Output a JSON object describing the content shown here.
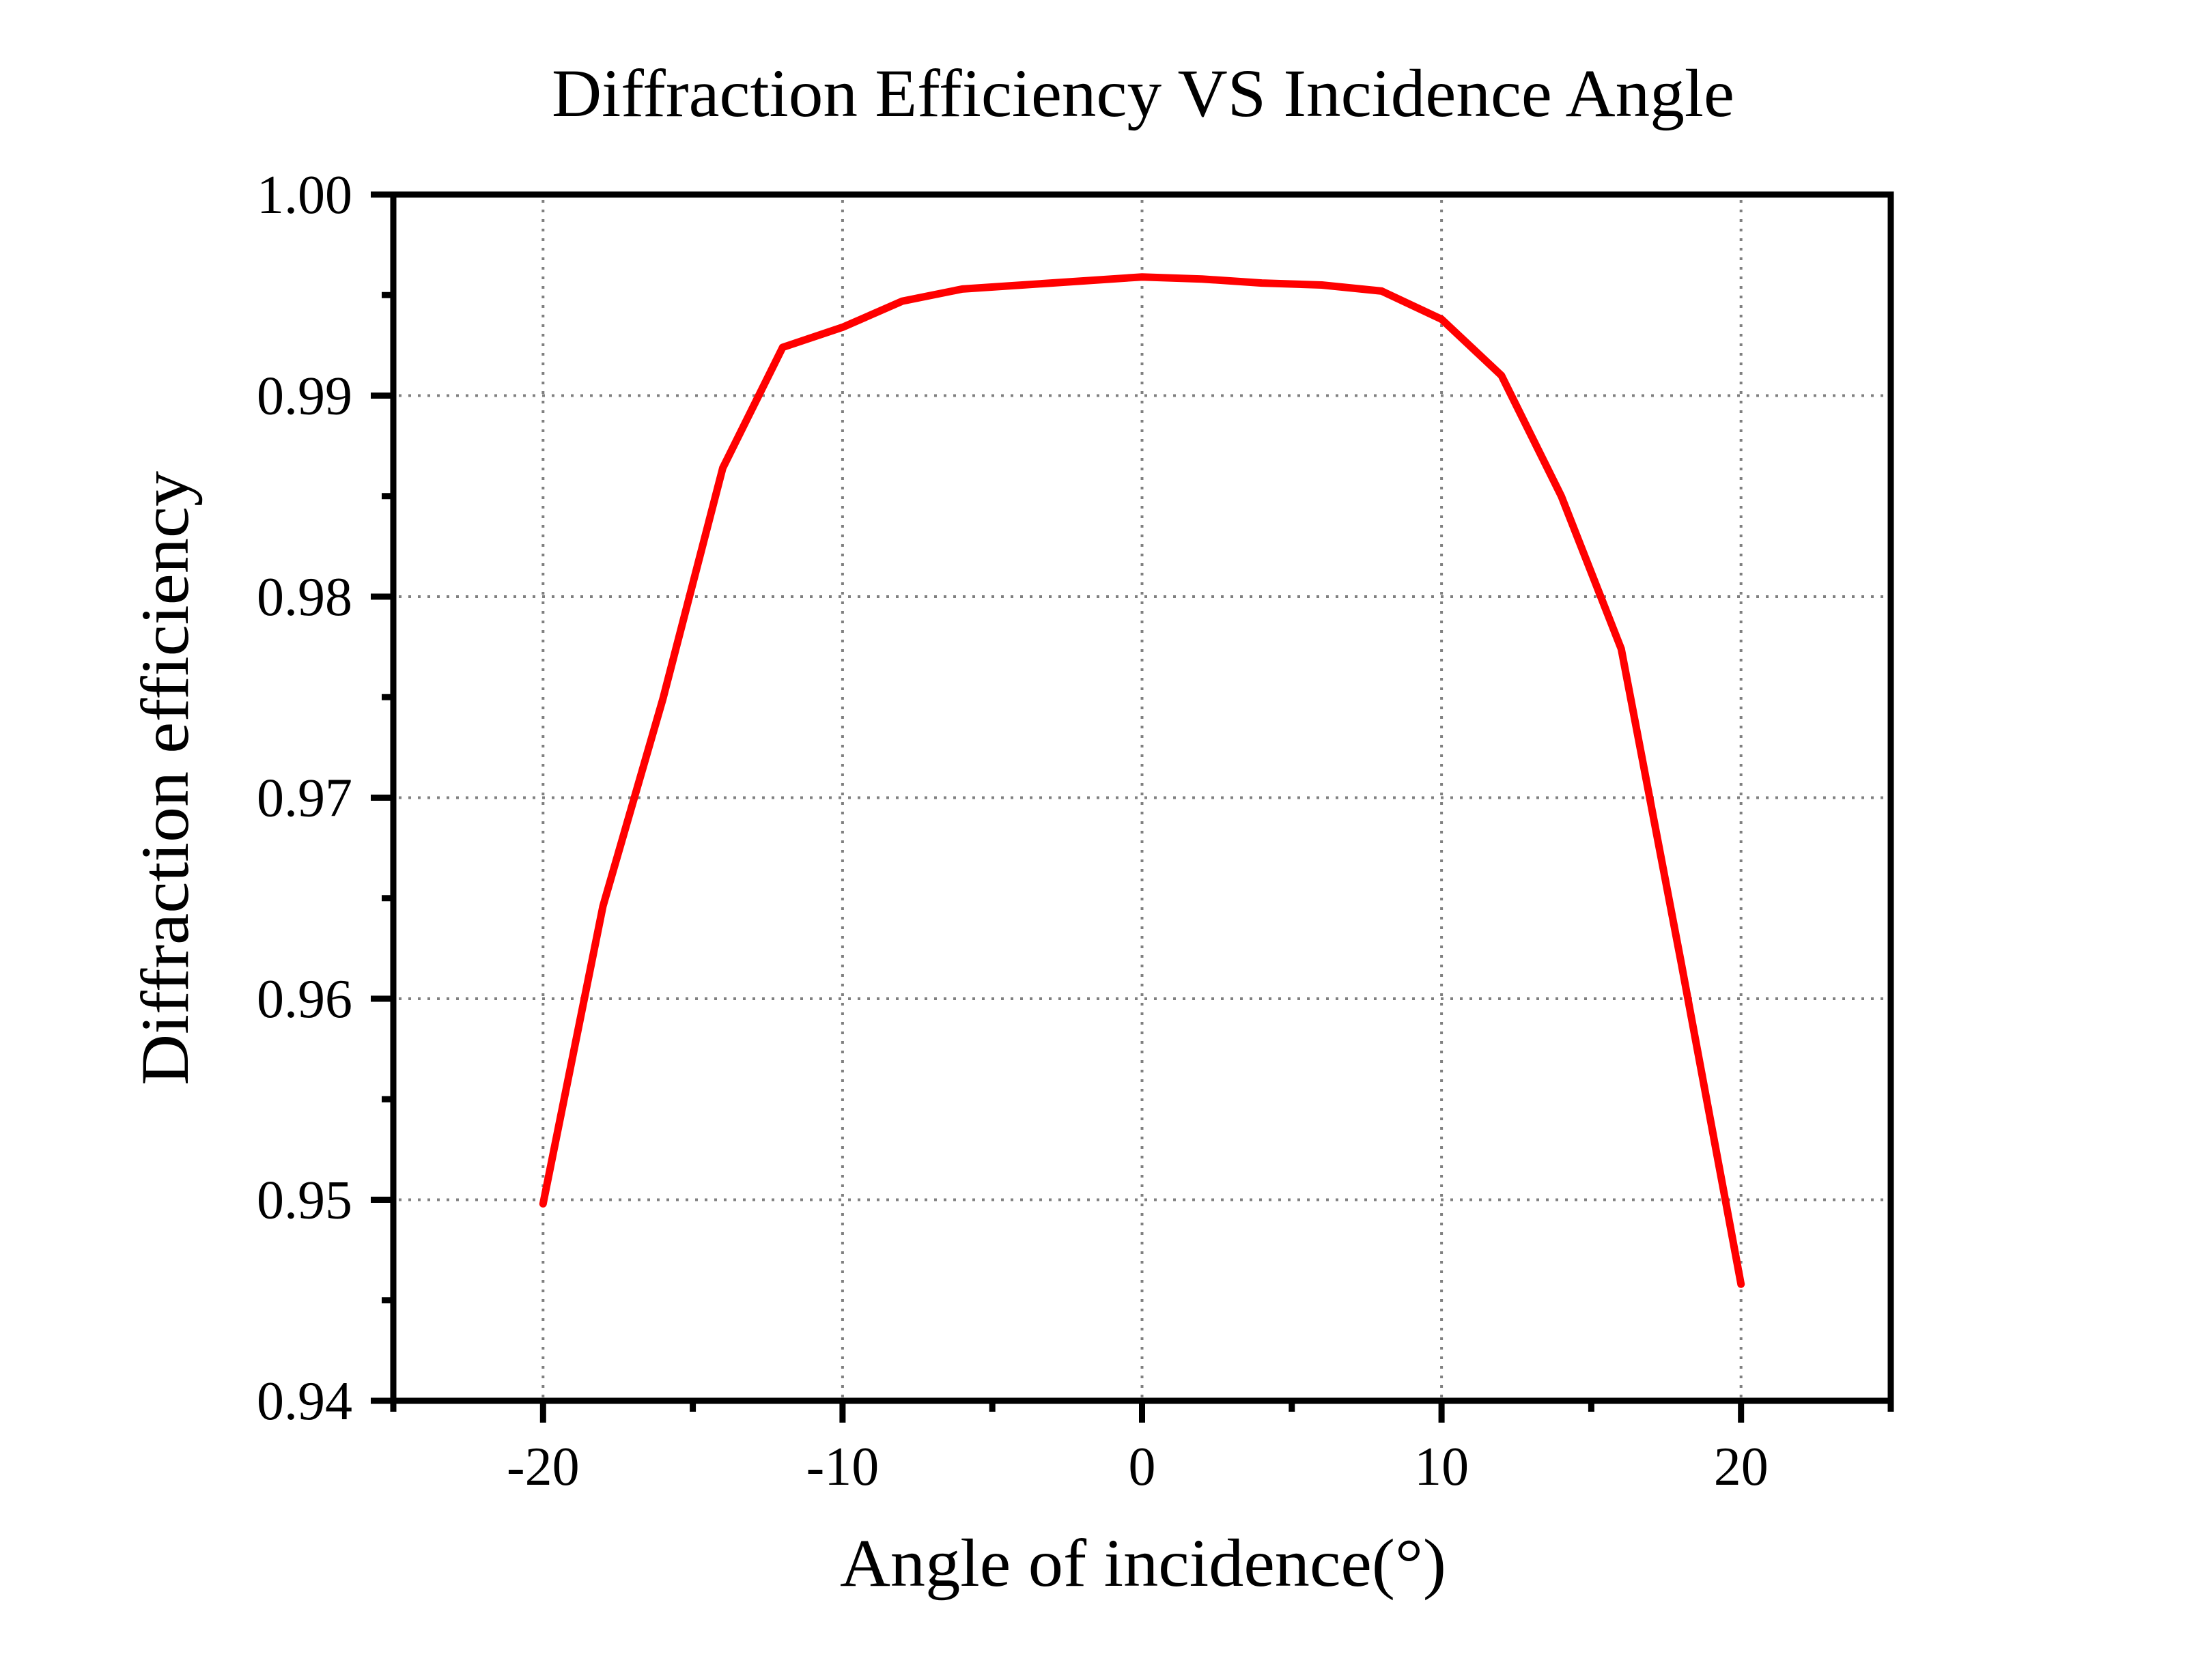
{
  "chart_data": {
    "type": "line",
    "title": "Diffraction Efficiency VS Incidence Angle",
    "xlabel": "Angle of incidence(°)",
    "ylabel": "Diffraction efficiency",
    "xlim": [
      -25,
      25
    ],
    "ylim": [
      0.94,
      1.0
    ],
    "x_major_ticks": [
      -20,
      -10,
      0,
      10,
      20
    ],
    "x_tick_labels": [
      "-20",
      "-10",
      "0",
      "10",
      "20"
    ],
    "x_minor_ticks": [
      -25,
      -15,
      -5,
      5,
      15,
      25
    ],
    "y_major_ticks": [
      0.94,
      0.95,
      0.96,
      0.97,
      0.98,
      0.99,
      1.0
    ],
    "y_tick_labels": [
      "0.94",
      "0.95",
      "0.96",
      "0.97",
      "0.98",
      "0.99",
      "1.00"
    ],
    "y_minor_ticks": [
      0.945,
      0.955,
      0.965,
      0.975,
      0.985,
      0.995
    ],
    "grid": true,
    "grid_style": "dotted",
    "legend": null,
    "x": [
      -20,
      -18,
      -16,
      -14,
      -12,
      -10,
      -8,
      -6,
      -4,
      -2,
      0,
      2,
      4,
      6,
      8,
      10,
      12,
      14,
      16,
      18,
      20
    ],
    "series": [
      {
        "name": "Diffraction efficiency",
        "color": "#ff0000",
        "values": [
          0.9498,
          0.9646,
          0.9749,
          0.9864,
          0.9924,
          0.9934,
          0.9947,
          0.9953,
          0.9955,
          0.9957,
          0.9959,
          0.9958,
          0.9956,
          0.9955,
          0.9952,
          0.9938,
          0.991,
          0.985,
          0.9774,
          0.9618,
          0.9458
        ]
      }
    ]
  }
}
